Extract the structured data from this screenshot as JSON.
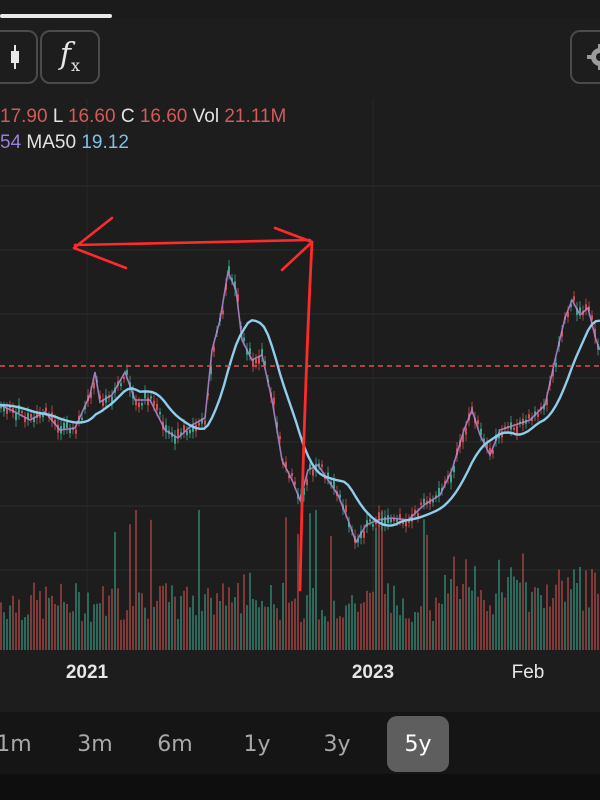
{
  "toolbar": {
    "candle_icon": "candlestick-icon",
    "fx_label": "f",
    "fx_sub": "x",
    "settings_icon": "gear-icon"
  },
  "legend": {
    "row1": [
      {
        "text": "17.90",
        "color": "red"
      },
      {
        "text": "L",
        "color": "white"
      },
      {
        "text": "16.60",
        "color": "red"
      },
      {
        "text": "C",
        "color": "white"
      },
      {
        "text": "16.60",
        "color": "red"
      },
      {
        "text": "Vol",
        "color": "white"
      },
      {
        "text": "21.11M",
        "color": "red"
      }
    ],
    "row2": [
      {
        "text": "54",
        "color": "purple"
      },
      {
        "text": "MA50",
        "color": "white"
      },
      {
        "text": "19.12",
        "color": "blue"
      }
    ]
  },
  "x_axis": {
    "ticks": [
      {
        "label": "2021",
        "bold": true
      },
      {
        "label": "2023",
        "bold": true
      },
      {
        "label": "Feb",
        "bold": false
      }
    ]
  },
  "ranges": {
    "items": [
      "1m",
      "3m",
      "6m",
      "1y",
      "3y",
      "5y"
    ],
    "active": "5y"
  },
  "colors": {
    "up": "#3aa78e",
    "down": "#d05050",
    "price_line": "#b78ad6",
    "ma50": "#8fcdec",
    "current_price_line": "#e05050",
    "annotation": "#ff2a2a"
  },
  "chart_data": {
    "type": "line",
    "series": [
      {
        "name": "MA50",
        "role": "moving-average"
      }
    ],
    "current_price": 16.6,
    "annotations": [
      "hand-drawn double arrow",
      "hand-drawn vertical line"
    ]
  }
}
